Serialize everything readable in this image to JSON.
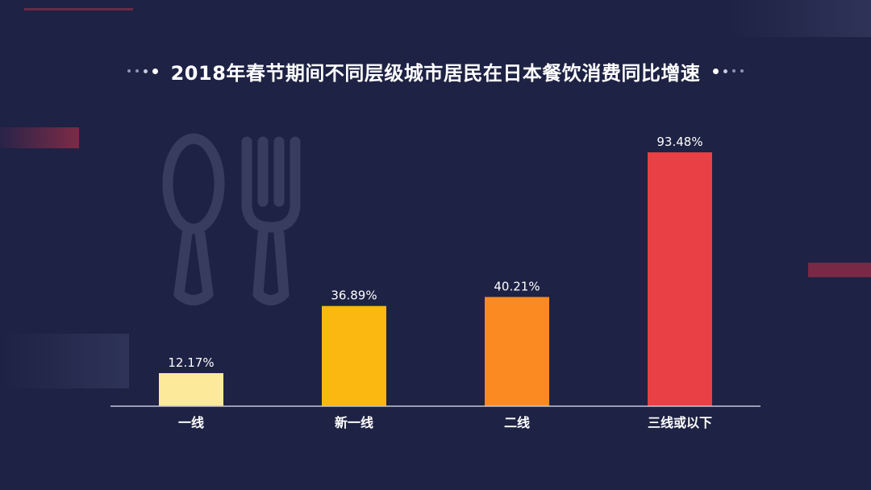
{
  "title": "2018年春节期间不同层级城市居民在日本餐饮消费同比增速",
  "colors": {
    "background": "#1e2244",
    "bar_1": "#fde99a",
    "bar_2": "#fbb810",
    "bar_3": "#fb8a23",
    "bar_4": "#e84045",
    "accent_red": "#8e2c47"
  },
  "icons": [
    "spoon-icon",
    "fork-icon"
  ],
  "chart_data": {
    "type": "bar",
    "title": "2018年春节期间不同层级城市居民在日本餐饮消费同比增速",
    "categories": [
      "一线",
      "新一线",
      "二线",
      "三线或以下"
    ],
    "values": [
      12.17,
      36.89,
      40.21,
      93.48
    ],
    "value_labels": [
      "12.17%",
      "36.89%",
      "40.21%",
      "93.48%"
    ],
    "ylim": [
      0,
      100
    ],
    "grid": false,
    "legend": "none"
  }
}
